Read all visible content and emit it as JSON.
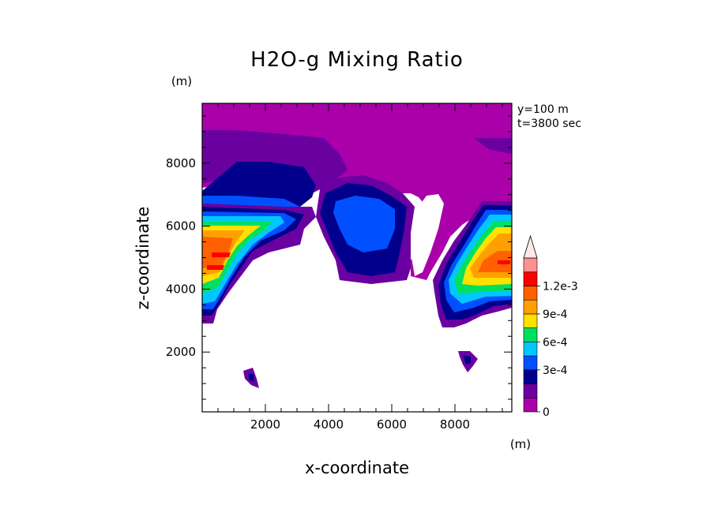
{
  "chart_data": {
    "type": "heatmap",
    "title": "H2O-g Mixing Ratio",
    "xlabel": "x-coordinate",
    "ylabel": "z-coordinate",
    "x_unit": "(m)",
    "y_unit": "(m)",
    "annotations": [
      "y=100 m",
      "t=3800 sec"
    ],
    "xlim": [
      0,
      9800
    ],
    "ylim": [
      100,
      9900
    ],
    "x_ticks": [
      2000,
      4000,
      6000,
      8000
    ],
    "x_tick_labels": [
      "2000",
      "4000",
      "6000",
      "8000"
    ],
    "y_ticks": [
      2000,
      4000,
      6000,
      8000
    ],
    "y_tick_labels": [
      "2000",
      "4000",
      "6000",
      "8000"
    ],
    "colorbar": {
      "levels": [
        0,
        0.00015,
        0.0003,
        0.00045,
        0.0006,
        0.00075,
        0.0009,
        0.00105,
        0.0012,
        0.00135
      ],
      "labels": [
        "0",
        "3e-4",
        "6e-4",
        "9e-4",
        "1.2e-3"
      ],
      "label_values": [
        0,
        0.0003,
        0.0006,
        0.0009,
        0.0012
      ],
      "colors": [
        "#aa00aa",
        "#6a00a0",
        "#00008c",
        "#0050ff",
        "#00c8ff",
        "#00e060",
        "#ffe000",
        "#ffa000",
        "#ff6000",
        "#ff0000",
        "#ff9090",
        "#ffe8e8"
      ],
      "extend": "max"
    },
    "values_note": "",
    "grid": false,
    "legend": "right"
  }
}
